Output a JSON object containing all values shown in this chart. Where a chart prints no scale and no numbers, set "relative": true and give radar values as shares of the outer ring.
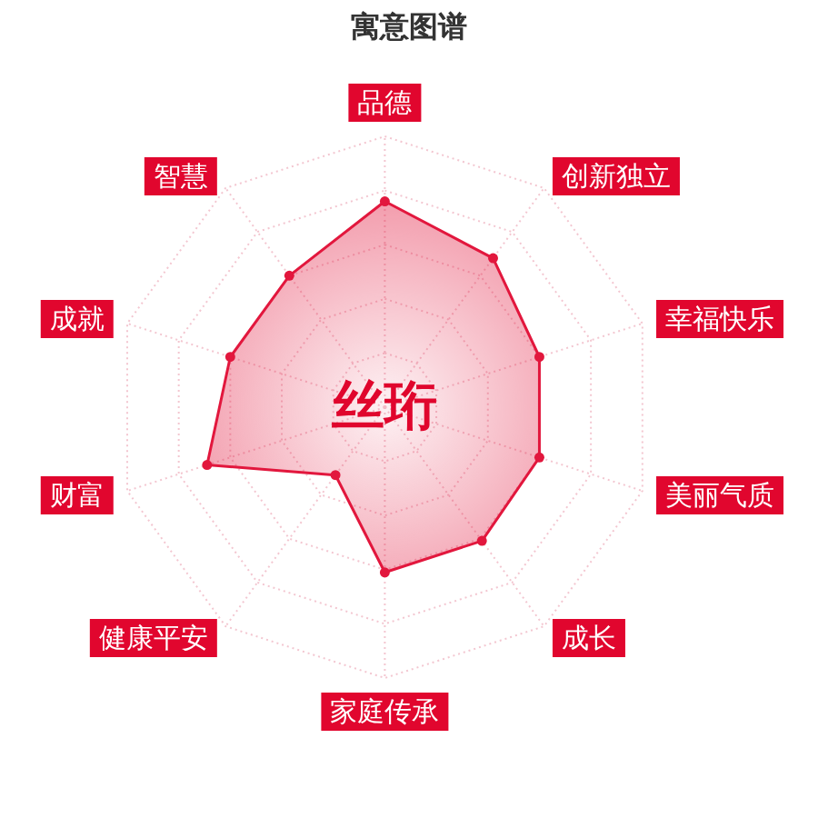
{
  "chart_data": {
    "type": "radar",
    "title": "寓意图谱",
    "categories": [
      "品德",
      "创新独立",
      "幸福快乐",
      "美丽气质",
      "成长",
      "家庭传承",
      "健康平安",
      "财富",
      "成就",
      "智慧"
    ],
    "series": [
      {
        "color": "#e2173d",
        "values": [
          0.76,
          0.68,
          0.6,
          0.6,
          0.61,
          0.61,
          0.31,
          0.69,
          0.6,
          0.6
        ]
      }
    ],
    "relative": true,
    "grid": true,
    "marker": "circle",
    "annotations": [
      "丝珩"
    ]
  }
}
